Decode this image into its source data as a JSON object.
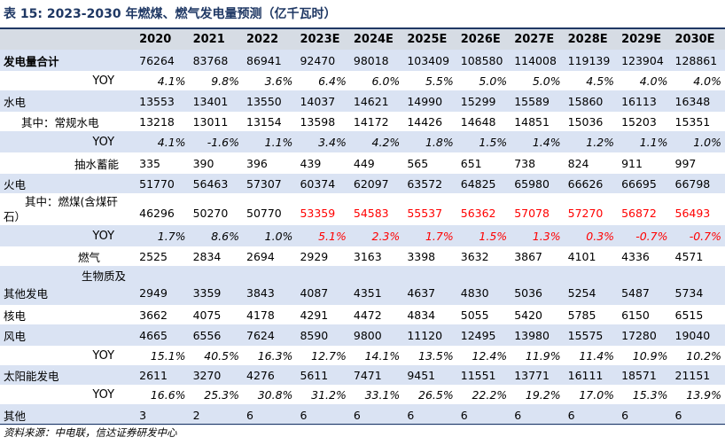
{
  "title": "表 15:  2023-2030 年燃煤、燃气发电量预测（亿千瓦时）",
  "headers": [
    "",
    "2020",
    "2021",
    "2022",
    "2023E",
    "2024E",
    "2025E",
    "2026E",
    "2027E",
    "2028E",
    "2029E",
    "2030E"
  ],
  "rows": [
    {
      "label": "发电量合计",
      "values": [
        "76264",
        "83768",
        "86941",
        "92470",
        "98018",
        "103409",
        "108580",
        "114008",
        "119139",
        "123904",
        "128861"
      ]
    },
    {
      "label": "YOY",
      "values": [
        "4.1%",
        "9.8%",
        "3.6%",
        "6.4%",
        "6.0%",
        "5.5%",
        "5.0%",
        "5.0%",
        "4.5%",
        "4.0%",
        "4.0%"
      ]
    },
    {
      "label": "水电",
      "values": [
        "13553",
        "13401",
        "13550",
        "14037",
        "14621",
        "14990",
        "15299",
        "15589",
        "15860",
        "16113",
        "16348"
      ]
    },
    {
      "label": "其中：常规水电",
      "values": [
        "13218",
        "13011",
        "13154",
        "13598",
        "14172",
        "14426",
        "14648",
        "14851",
        "15036",
        "15203",
        "15351"
      ]
    },
    {
      "label": "YOY",
      "values": [
        "4.1%",
        "-1.6%",
        "1.1%",
        "3.4%",
        "4.2%",
        "1.8%",
        "1.5%",
        "1.4%",
        "1.2%",
        "1.1%",
        "1.0%"
      ]
    },
    {
      "label": "抽水蓄能",
      "values": [
        "335",
        "390",
        "396",
        "439",
        "449",
        "565",
        "651",
        "738",
        "824",
        "911",
        "997"
      ]
    },
    {
      "label": "火电",
      "values": [
        "51770",
        "56463",
        "57307",
        "60374",
        "62097",
        "63572",
        "64825",
        "65980",
        "66626",
        "66695",
        "66798"
      ]
    },
    {
      "label": "其中：燃煤(含煤矸石）",
      "label_line1": "其中：燃煤(含煤矸",
      "label_line2": "石）",
      "values": [
        "46296",
        "50270",
        "50770",
        "53359",
        "54583",
        "55537",
        "56362",
        "57078",
        "57270",
        "56872",
        "56493"
      ]
    },
    {
      "label": "YOY",
      "values": [
        "1.7%",
        "8.6%",
        "1.0%",
        "5.1%",
        "2.3%",
        "1.7%",
        "1.5%",
        "1.3%",
        "0.3%",
        "-0.7%",
        "-0.7%"
      ]
    },
    {
      "label": "燃气",
      "values": [
        "2525",
        "2834",
        "2694",
        "2929",
        "3163",
        "3398",
        "3632",
        "3867",
        "4101",
        "4336",
        "4571"
      ]
    },
    {
      "label": "其他发电 生物质及",
      "label_line1": "生物质及",
      "label_line2": "其他发电",
      "values": [
        "2949",
        "3359",
        "3843",
        "4087",
        "4351",
        "4637",
        "4830",
        "5036",
        "5254",
        "5487",
        "5734"
      ]
    },
    {
      "label": "核电",
      "values": [
        "3662",
        "4075",
        "4178",
        "4291",
        "4472",
        "4834",
        "5055",
        "5420",
        "5785",
        "6150",
        "6515"
      ]
    },
    {
      "label": "风电",
      "values": [
        "4665",
        "6556",
        "7624",
        "8590",
        "9800",
        "11120",
        "12495",
        "13980",
        "15575",
        "17280",
        "19040"
      ]
    },
    {
      "label": "YOY",
      "values": [
        "15.1%",
        "40.5%",
        "16.3%",
        "12.7%",
        "14.1%",
        "13.5%",
        "12.4%",
        "11.9%",
        "11.4%",
        "10.9%",
        "10.2%"
      ]
    },
    {
      "label": "太阳能发电",
      "values": [
        "2611",
        "3270",
        "4276",
        "5611",
        "7471",
        "9451",
        "11551",
        "13771",
        "16111",
        "18571",
        "21151"
      ]
    },
    {
      "label": "YOY",
      "values": [
        "16.6%",
        "25.3%",
        "30.8%",
        "31.2%",
        "33.1%",
        "26.5%",
        "22.2%",
        "19.2%",
        "17.0%",
        "15.3%",
        "13.9%"
      ]
    },
    {
      "label": "其他",
      "values": [
        "3",
        "2",
        "6",
        "6",
        "6",
        "6",
        "6",
        "6",
        "6",
        "6",
        "6"
      ]
    }
  ],
  "source": "资料来源：中电联，信达证券研发中心",
  "colors": {
    "header_bg": "#d6dce4",
    "alt_row_bg": "#dae3f3",
    "forecast_red": "#ff0000",
    "title_blue": "#1f3864"
  }
}
